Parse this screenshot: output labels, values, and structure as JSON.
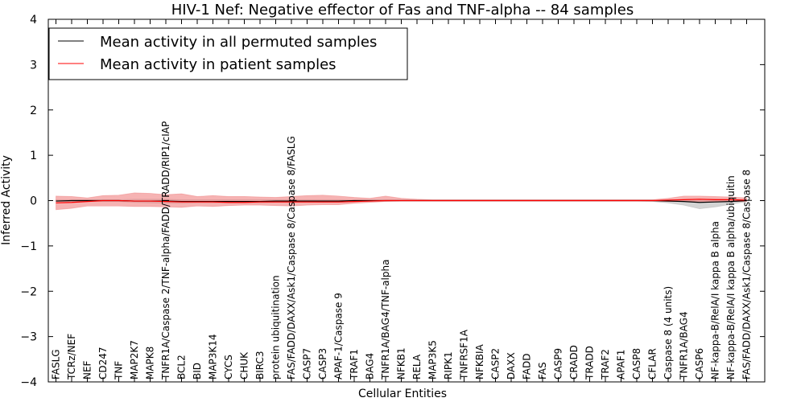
{
  "chart_data": {
    "type": "line",
    "title": "HIV-1 Nef: Negative effector of Fas and TNF-alpha -- 84 samples",
    "xlabel": "Cellular Entities",
    "ylabel": "Inferred Activity",
    "ylim": [
      -4,
      4
    ],
    "yticks": [
      -4,
      -3,
      -2,
      -1,
      0,
      1,
      2,
      3,
      4
    ],
    "ytick_labels": [
      "−4",
      "−3",
      "−2",
      "−1",
      "0",
      "1",
      "2",
      "3",
      "4"
    ],
    "grid": false,
    "legend_position": "top-left",
    "categories": [
      "FASLG",
      "TCRz/NEF",
      "NEF",
      "CD247",
      "TNF",
      "MAP2K7",
      "MAPK8",
      "TNFR1A/Caspase 2/TNF-alpha/FADD/TRADD/RIP1/cIAP",
      "BCL2",
      "BID",
      "MAP3K14",
      "CYCS",
      "CHUK",
      "BIRC3",
      "protein ubiquitination",
      "FAS/FADD/DAXX/Ask1/Caspase 8/Caspase 8/FASLG",
      "CASP7",
      "CASP3",
      "APAF-1/Caspase 9",
      "TRAF1",
      "BAG4",
      "TNFR1A/BAG4/TNF-alpha",
      "NFKB1",
      "RELA",
      "MAP3K5",
      "RIPK1",
      "TNFRSF1A",
      "NFKBIA",
      "CASP2",
      "DAXX",
      "FADD",
      "FAS",
      "CASP9",
      "CRADD",
      "TRADD",
      "TRAF2",
      "APAF1",
      "CASP8",
      "CFLAR",
      "Caspase 8 (4 units)",
      "TNFR1A/BAG4",
      "CASP6",
      "NF-kappa-B/RelA/I kappa B alpha",
      "NF-kappa-B/RelA/I kappa B alpha/ubiquitin",
      "FAS/FADD/DAXX/Ask1/Caspase 8/Caspase 8"
    ],
    "series": [
      {
        "name": "Mean activity in all permuted samples",
        "color": "#000000",
        "values": [
          -0.01,
          0.0,
          0.0,
          0.0,
          0.0,
          -0.01,
          -0.01,
          -0.01,
          -0.02,
          -0.02,
          -0.02,
          -0.02,
          -0.02,
          -0.02,
          -0.01,
          -0.01,
          -0.01,
          -0.01,
          -0.01,
          0.0,
          0.0,
          0.0,
          0.0,
          0.0,
          0.0,
          0.0,
          0.0,
          0.0,
          0.0,
          0.0,
          0.0,
          0.0,
          0.0,
          0.0,
          0.0,
          0.0,
          0.0,
          0.0,
          0.0,
          -0.01,
          -0.02,
          -0.04,
          -0.03,
          -0.02,
          0.0
        ],
        "band_color": "#b0b0b0",
        "band_low": [
          -0.02,
          -0.02,
          -0.02,
          -0.02,
          -0.02,
          -0.04,
          -0.05,
          -0.06,
          -0.06,
          -0.05,
          -0.05,
          -0.05,
          -0.05,
          -0.05,
          -0.04,
          -0.04,
          -0.03,
          -0.04,
          -0.03,
          -0.02,
          -0.02,
          -0.01,
          -0.01,
          -0.01,
          -0.01,
          -0.01,
          -0.01,
          -0.01,
          -0.01,
          -0.01,
          -0.01,
          -0.01,
          -0.01,
          -0.01,
          -0.01,
          -0.01,
          -0.01,
          -0.01,
          -0.02,
          -0.05,
          -0.1,
          -0.18,
          -0.14,
          -0.08,
          -0.02
        ],
        "band_high": [
          0.02,
          0.02,
          0.02,
          0.02,
          0.02,
          0.03,
          0.03,
          0.03,
          0.02,
          0.02,
          0.02,
          0.02,
          0.02,
          0.02,
          0.02,
          0.02,
          0.02,
          0.02,
          0.02,
          0.01,
          0.01,
          0.01,
          0.01,
          0.01,
          0.01,
          0.01,
          0.01,
          0.01,
          0.01,
          0.01,
          0.01,
          0.01,
          0.01,
          0.01,
          0.01,
          0.01,
          0.01,
          0.01,
          0.01,
          0.02,
          0.02,
          0.03,
          0.03,
          0.02,
          0.01
        ]
      },
      {
        "name": "Mean activity in patient samples",
        "color": "#ff0000",
        "values": [
          -0.05,
          -0.04,
          -0.02,
          0.0,
          0.0,
          -0.01,
          -0.01,
          -0.02,
          -0.03,
          -0.03,
          -0.03,
          -0.04,
          -0.04,
          -0.03,
          -0.03,
          -0.03,
          -0.03,
          -0.03,
          -0.03,
          -0.02,
          -0.01,
          0.0,
          0.0,
          0.0,
          0.0,
          0.0,
          0.0,
          0.0,
          0.0,
          0.0,
          0.0,
          0.0,
          0.0,
          0.0,
          0.0,
          0.0,
          0.0,
          0.0,
          0.0,
          0.01,
          0.02,
          0.03,
          0.02,
          0.02,
          0.01
        ],
        "band_color": "#f08080",
        "band_low": [
          -0.2,
          -0.17,
          -0.12,
          -0.12,
          -0.12,
          -0.13,
          -0.13,
          -0.14,
          -0.15,
          -0.12,
          -0.13,
          -0.11,
          -0.1,
          -0.1,
          -0.11,
          -0.12,
          -0.1,
          -0.09,
          -0.09,
          -0.06,
          -0.04,
          -0.02,
          -0.01,
          -0.01,
          -0.01,
          -0.01,
          -0.01,
          -0.01,
          -0.01,
          -0.01,
          -0.01,
          -0.01,
          -0.01,
          -0.01,
          -0.01,
          -0.01,
          -0.01,
          -0.01,
          -0.01,
          -0.02,
          -0.02,
          -0.02,
          -0.02,
          -0.02,
          -0.02
        ],
        "band_high": [
          0.1,
          0.09,
          0.06,
          0.11,
          0.12,
          0.17,
          0.16,
          0.13,
          0.15,
          0.09,
          0.11,
          0.09,
          0.09,
          0.08,
          0.07,
          0.09,
          0.11,
          0.12,
          0.1,
          0.07,
          0.05,
          0.1,
          0.05,
          0.03,
          0.02,
          0.02,
          0.02,
          0.02,
          0.02,
          0.02,
          0.02,
          0.02,
          0.02,
          0.02,
          0.02,
          0.02,
          0.02,
          0.02,
          0.02,
          0.05,
          0.1,
          0.1,
          0.09,
          0.08,
          0.06
        ]
      }
    ]
  }
}
